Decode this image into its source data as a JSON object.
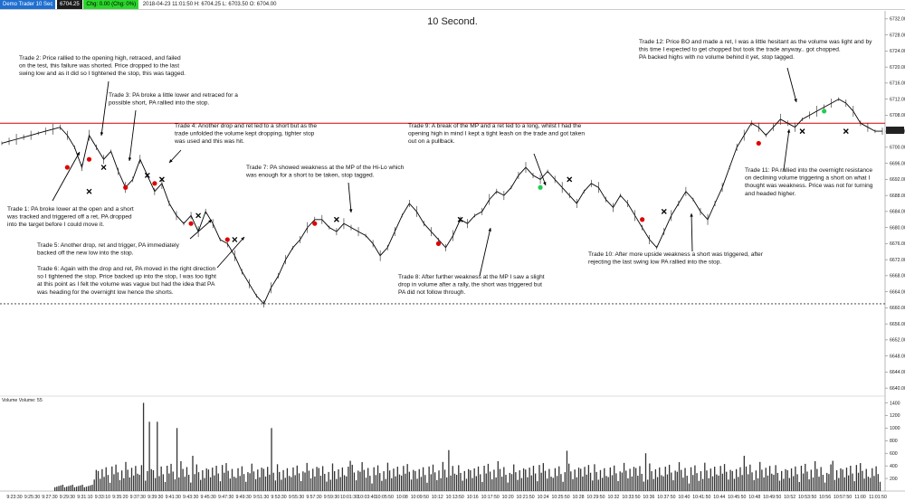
{
  "topbar": {
    "label": "Demo Trader 10 Sec",
    "price": "6704.25",
    "change": "Chg: 0.00 (Chg: 0%)",
    "ohlc": "2018-04-23 11:01:50 H: 6704.25 L: 6703.50 O: 6704.00"
  },
  "chart_data": {
    "type": "line",
    "title": "10 Second.",
    "price_axis_ticks": [
      "6732.00",
      "6728.00",
      "6724.00",
      "6720.00",
      "6716.00",
      "6712.00",
      "6708.00",
      "6704.00",
      "6700.00",
      "6696.00",
      "6692.00",
      "6688.00",
      "6684.00",
      "6680.00",
      "6676.00",
      "6672.00",
      "6668.00",
      "6664.00",
      "6660.00",
      "6656.00",
      "6652.00",
      "6648.00",
      "6644.00",
      "6640.00"
    ],
    "ylim": [
      6638,
      6734
    ],
    "current_price": "6704.25",
    "resistance_level": 6706,
    "support_level": 6661,
    "volume_label": "Volume Volume: 55",
    "volume_ticks": [
      "1400",
      "1200",
      "1000",
      "800",
      "600",
      "400",
      "200"
    ],
    "volume_ylim": [
      0,
      1450
    ],
    "time_ticks": [
      "9:23:30",
      "9:25:30",
      "9:27:30",
      "9:29:30",
      "9:31:10",
      "9:33:10",
      "9:35:20",
      "9:37:30",
      "9:39:30",
      "9:41:30",
      "9:43:30",
      "9:45:30",
      "9:47:30",
      "9:49:30",
      "9:51:30",
      "9:53:30",
      "9:55:30",
      "9:57:30",
      "9:59:30",
      "10:01:30",
      "10:03:40",
      "10:05:50",
      "10:08",
      "10:09:50",
      "10:12",
      "10:13:50",
      "10:16",
      "10:17:50",
      "10:20",
      "10:21:50",
      "10:24",
      "10:25:50",
      "10:28",
      "10:29:50",
      "10:32",
      "10:33:50",
      "10:36",
      "10:37:50",
      "10:40",
      "10:41:50",
      "10:44",
      "10:45:50",
      "10:48",
      "10:49:50",
      "10:52",
      "10:53:50",
      "10:56",
      "10:57:50",
      "11:00",
      "11:01:50"
    ],
    "series": [
      {
        "values": [
          6701,
          6701.5,
          6702,
          6702.5,
          6703,
          6703.5,
          6704,
          6704.5,
          6705,
          6703,
          6700,
          6695,
          6703,
          6700,
          6697,
          6699,
          6694,
          6690,
          6692,
          6697,
          6693,
          6689,
          6691,
          6686,
          6683,
          6681,
          6683,
          6679,
          6684,
          6681,
          6677,
          6676,
          6673,
          6669,
          6666,
          6663,
          6661,
          6665,
          6668,
          6672,
          6675,
          6677,
          6680,
          6682,
          6682,
          6680,
          6679,
          6681,
          6680,
          6679,
          6678,
          6676,
          6673,
          6675,
          6679,
          6683,
          6686,
          6684,
          6681,
          6679,
          6677,
          6675,
          6678,
          6682,
          6681,
          6683,
          6684,
          6687,
          6689,
          6688,
          6690,
          6693,
          6695,
          6693,
          6692,
          6694,
          6692,
          6690,
          6688,
          6686,
          6689,
          6691,
          6690,
          6687,
          6685,
          6688,
          6686,
          6683,
          6680,
          6677,
          6675,
          6679,
          6683,
          6686,
          6689,
          6687,
          6684,
          6682,
          6686,
          6690,
          6695,
          6700,
          6703,
          6706,
          6705,
          6703,
          6705,
          6707,
          6706,
          6705,
          6707,
          6708,
          6709,
          6710,
          6711,
          6712,
          6711,
          6709,
          6706,
          6705,
          6704,
          6704
        ]
      }
    ],
    "trades": [
      {
        "id": "1",
        "text": [
          "Trade 1:  PA broke lower at the open and a short",
          "was tracked and triggered off a ret, PA dropped",
          "into the target before I could move it."
        ]
      },
      {
        "id": "2",
        "text": [
          "Trade 2:  Price rallied to the opening high, retraced, and failed",
          "on the test, this failure was shorted.  Price dropped to the last",
          "swing low and as it did so I tightened the stop, this was tagged."
        ]
      },
      {
        "id": "3",
        "text": [
          "Trade 3:  PA broke a little lower and retraced for a",
          "possible short, PA rallied into the stop."
        ]
      },
      {
        "id": "4",
        "text": [
          "Trade 4:  Another drop and ret led to a short but as the",
          "trade unfolded the volume kept dropping, tighter stop",
          "was used and this was hit."
        ]
      },
      {
        "id": "5",
        "text": [
          "Trade 5:  Another drop, ret and trigger, PA immediately",
          "backed off the new low into the stop."
        ]
      },
      {
        "id": "6",
        "text": [
          "Trade 6:  Again with the drop and ret, PA moved in the right direction",
          "so I tightened the stop.  Price backed up into the stop, I was too tight",
          "at this point as I felt the volume was vague but had the idea that PA",
          "was heading for the overnight low hence the shorts."
        ]
      },
      {
        "id": "7",
        "text": [
          "Trade 7:  PA showed weakness at the MP of the Hi-Lo which",
          "was enough for a short to be taken, stop tagged."
        ]
      },
      {
        "id": "8",
        "text": [
          "Trade 8:  After further weakness at the MP I saw a slight",
          "drop in volume after a rally, the short was triggered but",
          "PA did not follow through."
        ]
      },
      {
        "id": "9",
        "text": [
          "Trade 9:  A break of the MP and a ret led to a long, whilst I had the",
          "opening high in mind I kept a tight leash on the trade and got taken",
          "out on a pullback."
        ]
      },
      {
        "id": "10",
        "text": [
          "Trade 10:  After more upside weakness a short was triggered, after",
          "rejecting the last swing low PA rallied into the stop."
        ]
      },
      {
        "id": "11",
        "text": [
          "Trade 11:  PA rallied into the overnight resistance",
          "on declining volume triggering a short on what I",
          "thought was weakness.  Price was not for turning",
          "and headed higher."
        ]
      },
      {
        "id": "12",
        "text": [
          "Trade 12:  Price BO and made a ret, I was a little hesitant as the volume was light and by",
          "this time I expected to get chopped but took the trade anyway.. got chopped.",
          "PA backed highs with no volume behind it yet, stop tagged."
        ]
      }
    ],
    "entries": [
      {
        "x": 6695,
        "side": "short"
      },
      {
        "x": 6697,
        "side": "short"
      },
      {
        "x": 6690,
        "side": "short"
      },
      {
        "x": 6691,
        "side": "short"
      },
      {
        "x": 6681,
        "side": "short"
      },
      {
        "x": 6677,
        "side": "short"
      },
      {
        "x": 6681,
        "side": "short"
      },
      {
        "x": 6676,
        "side": "short"
      },
      {
        "x": 6690,
        "side": "long"
      },
      {
        "x": 6682,
        "side": "short"
      },
      {
        "x": 6701,
        "side": "short"
      },
      {
        "x": 6709,
        "side": "long"
      }
    ],
    "exits": [
      6689,
      6695,
      6693,
      6692,
      6683,
      6677,
      6682,
      6682,
      6692,
      6684,
      6704,
      6704
    ],
    "volume_spikes": [
      1400,
      1100,
      1100,
      1000,
      560,
      1000,
      480,
      650,
      640,
      600,
      560,
      480
    ]
  },
  "colors": {
    "resistance": "#d40000",
    "entry_short": "#e00000",
    "entry_long": "#22cc55",
    "price_line": "#000000"
  }
}
